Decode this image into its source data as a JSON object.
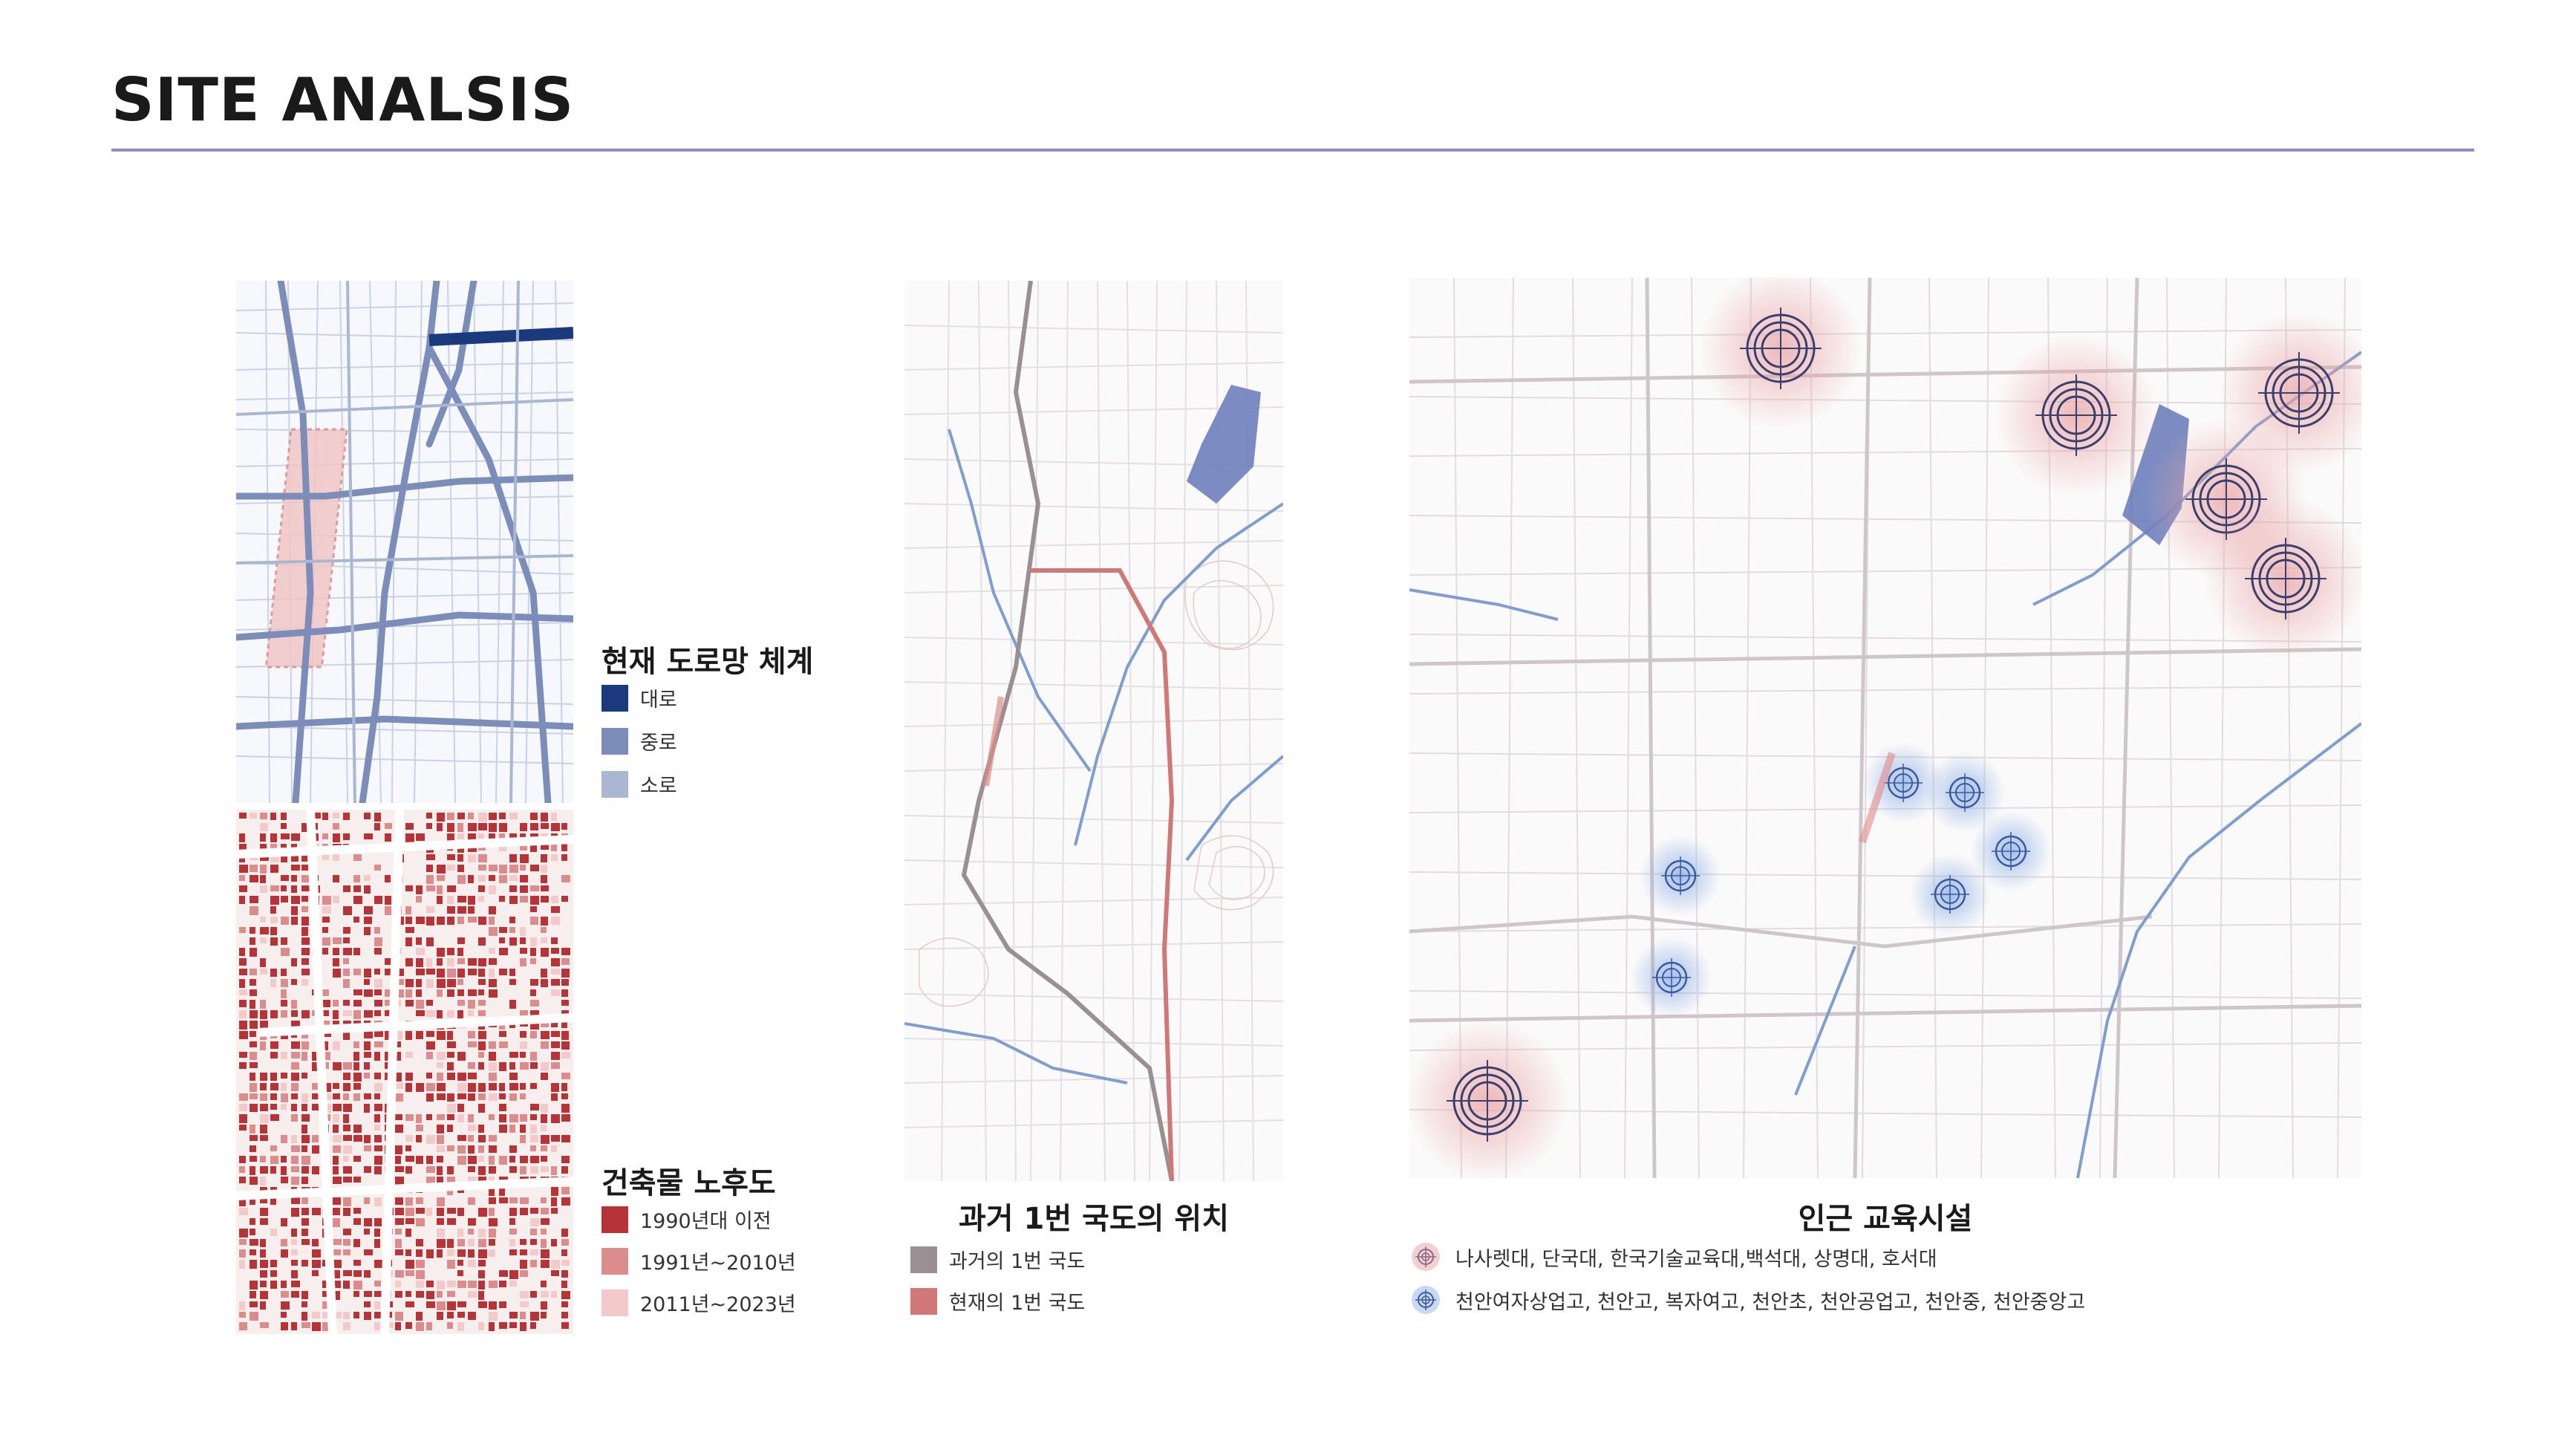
{
  "page": {
    "title": "SITE ANALSIS"
  },
  "road_panel": {
    "legend_title": "현재 도로망 체계",
    "items": [
      {
        "label": "대로",
        "color": "#1b3a7d"
      },
      {
        "label": "중로",
        "color": "#7b8db8"
      },
      {
        "label": "소로",
        "color": "#aab7d2"
      }
    ]
  },
  "building_panel": {
    "legend_title": "건축물 노후도",
    "items": [
      {
        "label": "1990년대 이전",
        "color": "#b63437"
      },
      {
        "label": "1991년~2010년",
        "color": "#db8c8c"
      },
      {
        "label": "2011년~2023년",
        "color": "#f3c9c9"
      }
    ]
  },
  "national_road_panel": {
    "caption": "과거 1번 국도의 위치",
    "items": [
      {
        "label": "과거의 1번 국도",
        "color": "#9a8f92"
      },
      {
        "label": "현재의 1번 국도",
        "color": "#d07878"
      }
    ]
  },
  "education_panel": {
    "caption": "인근 교육시설",
    "items": [
      {
        "label": "나사렛대, 단국대, 한국기술교육대,백석대, 상명대, 호서대",
        "color": "#e8a3a3",
        "icon": "university-target-icon"
      },
      {
        "label": "천안여자상업고, 천안고, 복자여고, 천안초, 천안공업고, 천안중, 천안중앙고",
        "color": "#8fa9df",
        "icon": "school-target-icon"
      }
    ]
  }
}
